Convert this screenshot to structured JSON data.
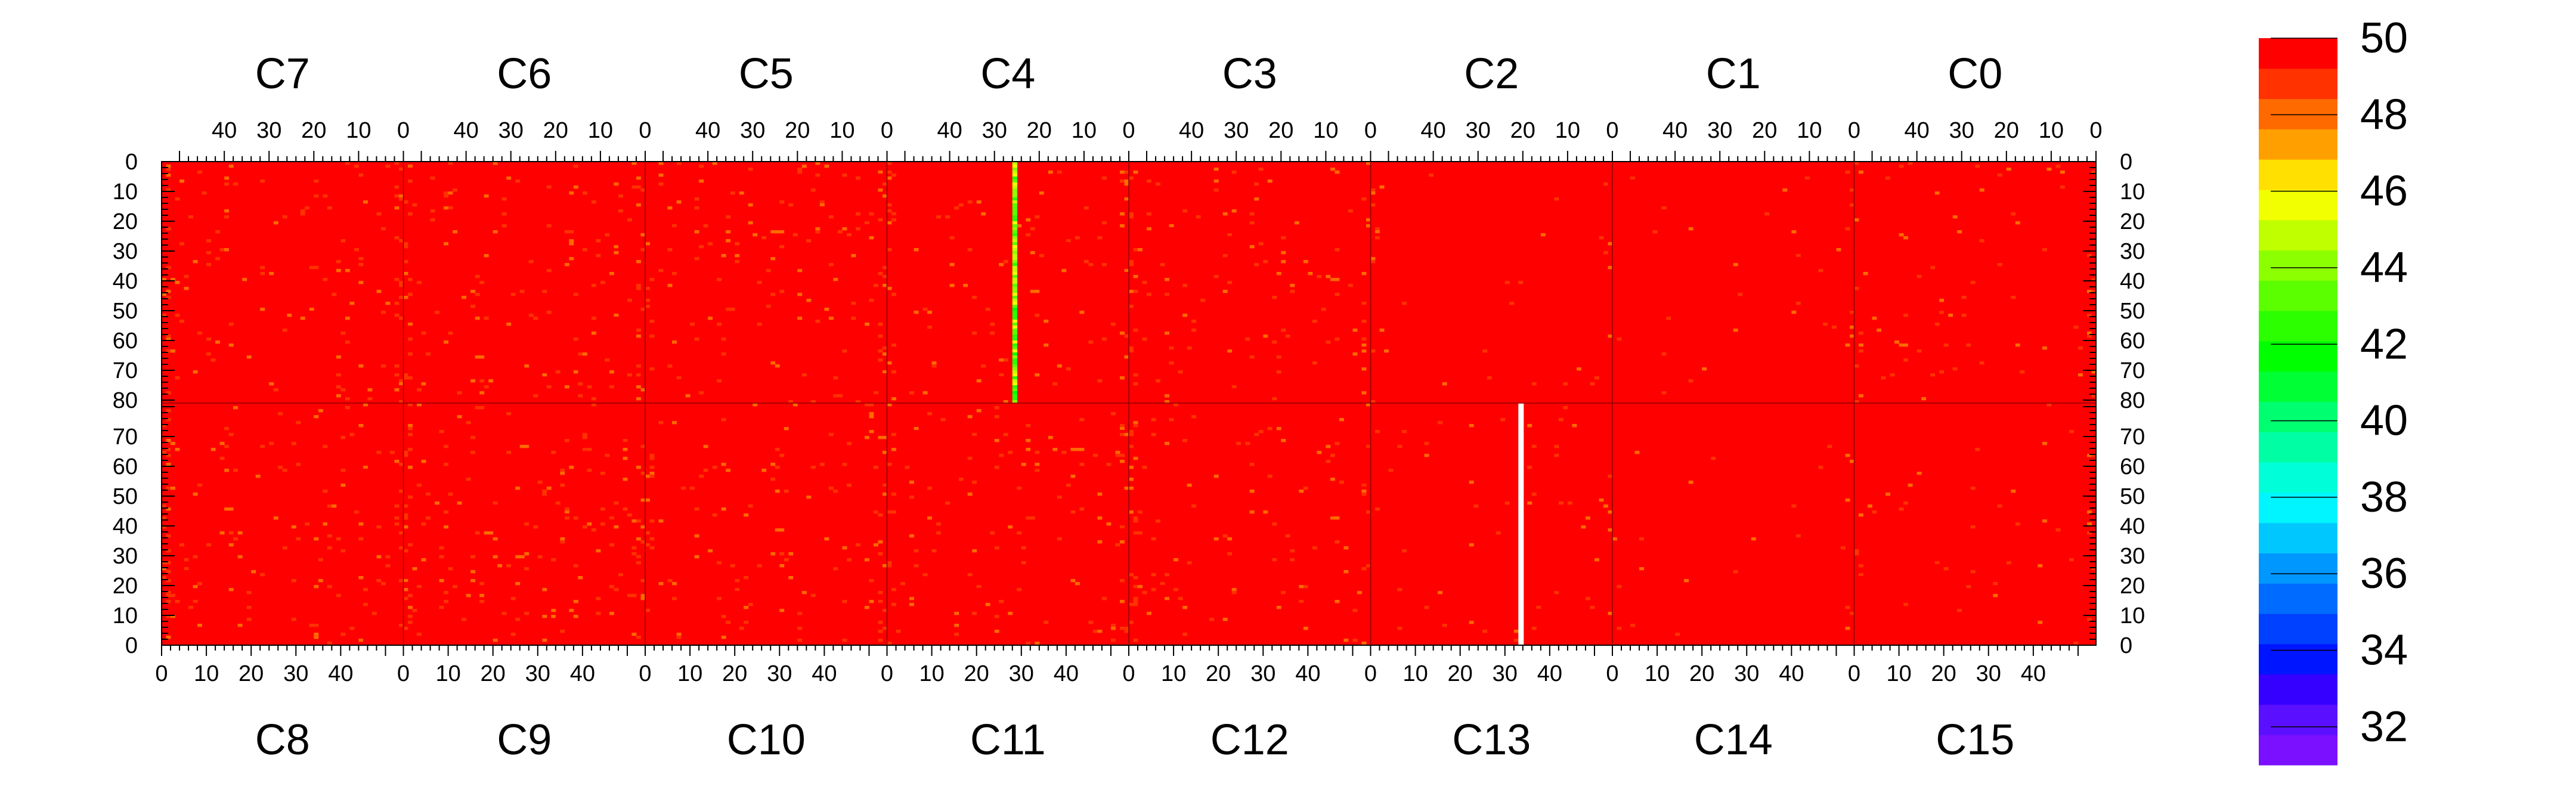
{
  "chart_data": {
    "type": "heatmap",
    "title": "",
    "xlabel": "",
    "ylabel": "",
    "top_chips": [
      "C7",
      "C6",
      "C5",
      "C4",
      "C3",
      "C2",
      "C1",
      "C0"
    ],
    "bottom_chips": [
      "C8",
      "C9",
      "C10",
      "C11",
      "C12",
      "C13",
      "C14",
      "C15"
    ],
    "chip_x_range": [
      0,
      54
    ],
    "top_x_tick_labels": [
      "40",
      "30",
      "20",
      "10",
      "0"
    ],
    "bottom_x_tick_labels": [
      "0",
      "10",
      "20",
      "30",
      "40"
    ],
    "y_range_per_half": [
      0,
      81
    ],
    "top_y_tick_labels": [
      "0",
      "10",
      "20",
      "30",
      "40",
      "50",
      "60",
      "70",
      "80"
    ],
    "bottom_y_tick_labels": [
      "80",
      "70",
      "60",
      "50",
      "40",
      "30",
      "20",
      "10",
      "0"
    ],
    "z_range": [
      31,
      50
    ],
    "colorbar_tick_labels": [
      "50",
      "48",
      "46",
      "44",
      "42",
      "40",
      "38",
      "36",
      "34",
      "32"
    ],
    "colorbar_colors": [
      "#7b0fff",
      "#5a10ff",
      "#3500ff",
      "#0015ff",
      "#0040ff",
      "#006cff",
      "#0098ff",
      "#00c8ff",
      "#00f5ff",
      "#00ffd8",
      "#00ffa5",
      "#00ff70",
      "#00ff35",
      "#00ff00",
      "#2cff00",
      "#5cff00",
      "#8cff00",
      "#c0ff00",
      "#f2ff00",
      "#ffe000",
      "#ffa000",
      "#ff6a00",
      "#ff3200",
      "#ff0000"
    ],
    "dominant_value": 50,
    "column_features": [
      {
        "half": "top",
        "chip": "C4",
        "x": 26,
        "y_range": [
          0,
          81
        ],
        "values": "42-46"
      },
      {
        "half": "bottom",
        "chip": "C13",
        "x": 33,
        "y_range": [
          0,
          81
        ],
        "values": "empty"
      }
    ],
    "grid": false,
    "legend": "right"
  }
}
